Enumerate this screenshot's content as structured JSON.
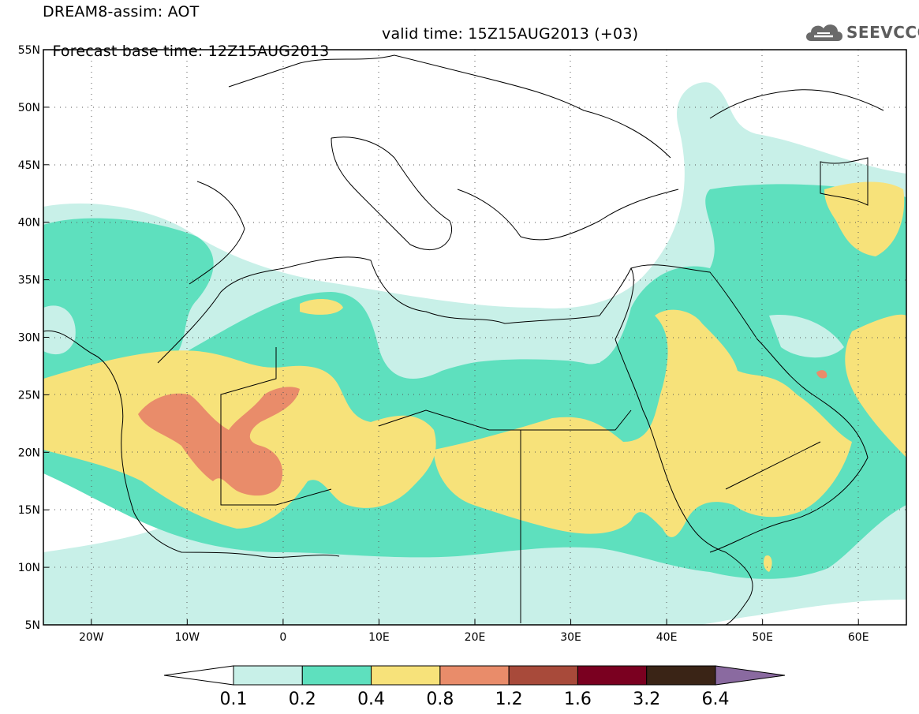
{
  "title_line1": "DREAM8-assim: AOT",
  "title_base": "Forecast base time: 12Z15AUG2013",
  "title_valid": "valid time: 15Z15AUG2013 (+03)",
  "logo_text": "SEEVCCC",
  "logo_icon": "cloud-icon",
  "map": {
    "lon_range": [
      -25,
      65
    ],
    "lat_range": [
      5,
      55
    ],
    "lon_ticks": [
      {
        "value": -20,
        "label": "20W"
      },
      {
        "value": -10,
        "label": "10W"
      },
      {
        "value": 0,
        "label": "0"
      },
      {
        "value": 10,
        "label": "10E"
      },
      {
        "value": 20,
        "label": "20E"
      },
      {
        "value": 30,
        "label": "30E"
      },
      {
        "value": 40,
        "label": "40E"
      },
      {
        "value": 50,
        "label": "50E"
      },
      {
        "value": 60,
        "label": "60E"
      }
    ],
    "lat_ticks": [
      {
        "value": 55,
        "label": "55N"
      },
      {
        "value": 50,
        "label": "50N"
      },
      {
        "value": 45,
        "label": "45N"
      },
      {
        "value": 40,
        "label": "40N"
      },
      {
        "value": 35,
        "label": "35N"
      },
      {
        "value": 30,
        "label": "30N"
      },
      {
        "value": 25,
        "label": "25N"
      },
      {
        "value": 20,
        "label": "20N"
      },
      {
        "value": 15,
        "label": "15N"
      },
      {
        "value": 10,
        "label": "10N"
      },
      {
        "value": 5,
        "label": "5N"
      }
    ],
    "grid": "dotted"
  },
  "colorbar": {
    "levels": [
      "0.1",
      "0.2",
      "0.4",
      "0.8",
      "1.2",
      "1.6",
      "3.2",
      "6.4"
    ],
    "colors": [
      "#ffffff",
      "#c8f0e8",
      "#5ee0be",
      "#f7e27a",
      "#e98c6a",
      "#a84a3a",
      "#7a0020",
      "#3a2416",
      "#8a6aa0"
    ]
  }
}
